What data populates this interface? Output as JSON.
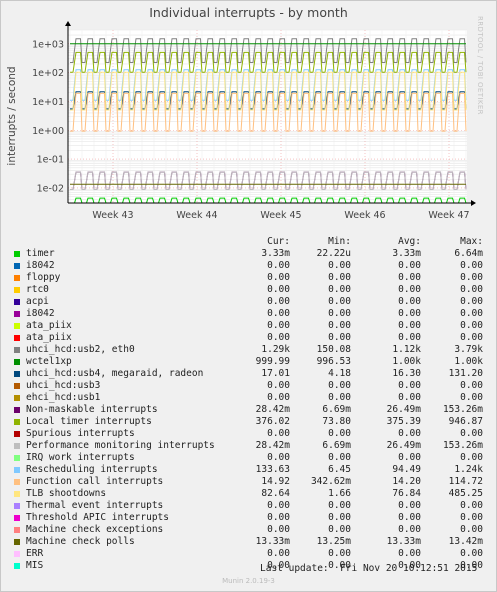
{
  "title": "Individual interrupts - by month",
  "watermark": "RRDTOOL / TOBI OETIKER",
  "footer": "Munin 2.0.19-3",
  "last_update": "Last update:  Fri Nov 20 10:12:51 2015",
  "legend_headers": {
    "cur": "Cur:",
    "min": "Min:",
    "avg": "Avg:",
    "max": "Max:"
  },
  "chart_data": {
    "type": "line",
    "title": "Individual interrupts - by month",
    "ylabel": "interrupts / second",
    "yscale": "log",
    "ylim": [
      0.003,
      3000
    ],
    "yticks": [
      "1e+03",
      "1e+02",
      "1e+01",
      "1e+00",
      "1e-01",
      "1e-02"
    ],
    "ytick_values": [
      1000,
      100,
      10,
      1,
      0.1,
      0.01
    ],
    "xticks": [
      "Week 43",
      "Week 44",
      "Week 45",
      "Week 46",
      "Week 47"
    ],
    "grid": true,
    "series": [
      {
        "name": "timer",
        "color": "#00cc00",
        "cur": "3.33m",
        "min": "22.22u",
        "avg": "3.33m",
        "max": "6.64m"
      },
      {
        "name": "i8042",
        "color": "#0066b3",
        "cur": "0.00",
        "min": "0.00",
        "avg": "0.00",
        "max": "0.00"
      },
      {
        "name": "floppy",
        "color": "#ff8000",
        "cur": "0.00",
        "min": "0.00",
        "avg": "0.00",
        "max": "0.00"
      },
      {
        "name": "rtc0",
        "color": "#ffcc00",
        "cur": "0.00",
        "min": "0.00",
        "avg": "0.00",
        "max": "0.00"
      },
      {
        "name": "acpi",
        "color": "#330099",
        "cur": "0.00",
        "min": "0.00",
        "avg": "0.00",
        "max": "0.00"
      },
      {
        "name": "i8042",
        "color": "#990099",
        "cur": "0.00",
        "min": "0.00",
        "avg": "0.00",
        "max": "0.00"
      },
      {
        "name": "ata_piix",
        "color": "#ccff00",
        "cur": "0.00",
        "min": "0.00",
        "avg": "0.00",
        "max": "0.00"
      },
      {
        "name": "ata_piix",
        "color": "#ff0000",
        "cur": "0.00",
        "min": "0.00",
        "avg": "0.00",
        "max": "0.00"
      },
      {
        "name": "uhci_hcd:usb2, eth0",
        "color": "#808080",
        "cur": "1.29k",
        "min": "150.08",
        "avg": "1.12k",
        "max": "3.79k"
      },
      {
        "name": "wctel1xp",
        "color": "#008f00",
        "cur": "999.99",
        "min": "996.53",
        "avg": "1.00k",
        "max": "1.00k"
      },
      {
        "name": "uhci_hcd:usb4, megaraid, radeon",
        "color": "#00487d",
        "cur": "17.01",
        "min": "4.18",
        "avg": "16.30",
        "max": "131.20"
      },
      {
        "name": "uhci_hcd:usb3",
        "color": "#b35a00",
        "cur": "0.00",
        "min": "0.00",
        "avg": "0.00",
        "max": "0.00"
      },
      {
        "name": "ehci_hcd:usb1",
        "color": "#b38f00",
        "cur": "0.00",
        "min": "0.00",
        "avg": "0.00",
        "max": "0.00"
      },
      {
        "name": "Non-maskable interrupts",
        "color": "#6b006b",
        "cur": "28.42m",
        "min": "6.69m",
        "avg": "26.49m",
        "max": "153.26m"
      },
      {
        "name": "Local timer interrupts",
        "color": "#8fb300",
        "cur": "376.02",
        "min": "73.80",
        "avg": "375.39",
        "max": "946.87"
      },
      {
        "name": "Spurious interrupts",
        "color": "#b30000",
        "cur": "0.00",
        "min": "0.00",
        "avg": "0.00",
        "max": "0.00"
      },
      {
        "name": "Performance monitoring interrupts",
        "color": "#bebebe",
        "cur": "28.42m",
        "min": "6.69m",
        "avg": "26.49m",
        "max": "153.26m"
      },
      {
        "name": "IRQ work interrupts",
        "color": "#80ff80",
        "cur": "0.00",
        "min": "0.00",
        "avg": "0.00",
        "max": "0.00"
      },
      {
        "name": "Rescheduling interrupts",
        "color": "#80c9ff",
        "cur": "133.63",
        "min": "6.45",
        "avg": "94.49",
        "max": "1.24k"
      },
      {
        "name": "Function call interrupts",
        "color": "#ffc080",
        "cur": "14.92",
        "min": "342.62m",
        "avg": "14.20",
        "max": "114.72"
      },
      {
        "name": "TLB shootdowns",
        "color": "#ffe680",
        "cur": "82.64",
        "min": "1.66",
        "avg": "76.84",
        "max": "485.25"
      },
      {
        "name": "Thermal event interrupts",
        "color": "#aa80ff",
        "cur": "0.00",
        "min": "0.00",
        "avg": "0.00",
        "max": "0.00"
      },
      {
        "name": "Threshold APIC interrupts",
        "color": "#ee00cc",
        "cur": "0.00",
        "min": "0.00",
        "avg": "0.00",
        "max": "0.00"
      },
      {
        "name": "Machine check exceptions",
        "color": "#ff8080",
        "cur": "0.00",
        "min": "0.00",
        "avg": "0.00",
        "max": "0.00"
      },
      {
        "name": "Machine check polls",
        "color": "#666600",
        "cur": "13.33m",
        "min": "13.25m",
        "avg": "13.33m",
        "max": "13.42m"
      },
      {
        "name": "ERR",
        "color": "#ffbfff",
        "cur": "0.00",
        "min": "0.00",
        "avg": "0.00",
        "max": "0.00"
      },
      {
        "name": "MIS",
        "color": "#00ffcc",
        "cur": "0.00",
        "min": "0.00",
        "avg": "0.00",
        "max": "0.00"
      }
    ]
  }
}
